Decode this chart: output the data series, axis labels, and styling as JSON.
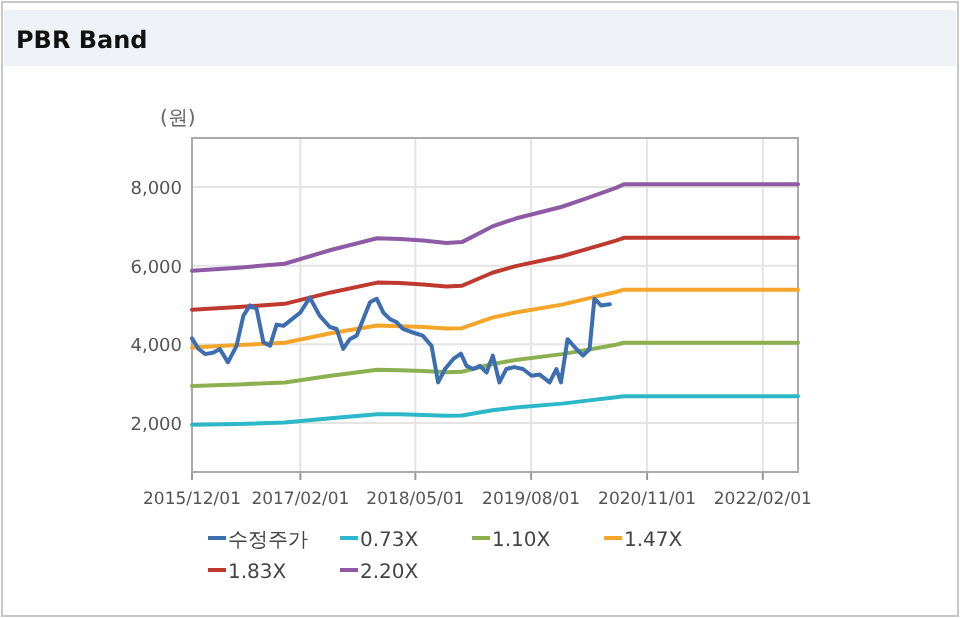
{
  "chart_data": {
    "type": "line",
    "title": "PBR Band",
    "ylabel": "(원)",
    "xlim": [
      "2015-12-01",
      "2022-06-20"
    ],
    "xticks": [
      {
        "value": "2015-12-01",
        "label": "2015/12/01"
      },
      {
        "value": "2017-02-01",
        "label": "2017/02/01"
      },
      {
        "value": "2018-05-01",
        "label": "2018/05/01"
      },
      {
        "value": "2019-08-01",
        "label": "2019/08/01"
      },
      {
        "value": "2020-11-01",
        "label": "2020/11/01"
      },
      {
        "value": "2022-02-01",
        "label": "2022/02/01"
      }
    ],
    "ylim": [
      750,
      9250
    ],
    "yticks": [
      {
        "value": 2000,
        "label": "2,000"
      },
      {
        "value": 4000,
        "label": "4,000"
      },
      {
        "value": 6000,
        "label": "6,000"
      },
      {
        "value": 8000,
        "label": "8,000"
      }
    ],
    "grid": true,
    "legend": "bottom",
    "line_style": "solid",
    "marker": "none",
    "series": [
      {
        "name": "수정주가",
        "color": "#3d6eb0",
        "x": [
          "2015-12-01",
          "2015-12-27",
          "2016-01-23",
          "2016-02-24",
          "2016-03-20",
          "2016-04-21",
          "2016-05-25",
          "2016-06-21",
          "2016-07-17",
          "2016-08-12",
          "2016-09-08",
          "2016-10-04",
          "2016-10-30",
          "2016-11-26",
          "2016-12-30",
          "2017-02-01",
          "2017-03-10",
          "2017-04-18",
          "2017-05-28",
          "2017-06-24",
          "2017-07-20",
          "2017-08-15",
          "2017-09-11",
          "2017-10-07",
          "2017-11-03",
          "2017-11-29",
          "2017-12-25",
          "2018-01-21",
          "2018-02-16",
          "2018-03-13",
          "2018-04-21",
          "2018-05-30",
          "2018-07-04",
          "2018-07-30",
          "2018-08-26",
          "2018-09-27",
          "2018-10-28",
          "2018-11-19",
          "2018-12-15",
          "2019-01-11",
          "2019-02-06",
          "2019-03-03",
          "2019-03-29",
          "2019-04-25",
          "2019-05-26",
          "2019-06-30",
          "2019-08-03",
          "2019-09-04",
          "2019-10-13",
          "2019-11-09",
          "2019-11-27",
          "2019-12-23",
          "2020-01-27",
          "2020-02-22",
          "2020-03-19",
          "2020-04-07",
          "2020-05-03",
          "2020-06-07"
        ],
        "values": [
          4150,
          3880,
          3750,
          3790,
          3880,
          3540,
          3960,
          4730,
          4990,
          4900,
          4050,
          3960,
          4500,
          4470,
          4640,
          4810,
          5190,
          4730,
          4440,
          4390,
          3880,
          4130,
          4220,
          4640,
          5070,
          5160,
          4810,
          4640,
          4560,
          4390,
          4300,
          4220,
          3960,
          3030,
          3370,
          3620,
          3760,
          3450,
          3370,
          3450,
          3280,
          3710,
          3030,
          3370,
          3420,
          3370,
          3200,
          3230,
          3030,
          3370,
          3030,
          4130,
          3880,
          3710,
          3880,
          5160,
          4990,
          5020
        ]
      },
      {
        "name": "0.73X",
        "color": "#2cb8c8",
        "x": [
          "2015-12-01",
          "2016-06-01",
          "2016-12-01",
          "2017-06-01",
          "2017-12-01",
          "2018-03-01",
          "2018-06-01",
          "2018-09-01",
          "2018-11-01",
          "2019-03-01",
          "2019-06-01",
          "2019-12-01",
          "2020-03-01",
          "2020-07-01",
          "2020-08-01",
          "2022-06-20"
        ],
        "values": [
          1950,
          1970,
          2010,
          2120,
          2220,
          2220,
          2200,
          2180,
          2190,
          2320,
          2390,
          2490,
          2560,
          2650,
          2680,
          2680
        ]
      },
      {
        "name": "1.10X",
        "color": "#8cb050",
        "x": [
          "2015-12-01",
          "2016-06-01",
          "2016-12-01",
          "2017-06-01",
          "2017-12-01",
          "2018-03-01",
          "2018-06-01",
          "2018-09-01",
          "2018-11-01",
          "2019-03-01",
          "2019-06-01",
          "2019-12-01",
          "2020-03-01",
          "2020-07-01",
          "2020-08-01",
          "2022-06-20"
        ],
        "values": [
          2940,
          2980,
          3030,
          3200,
          3350,
          3340,
          3320,
          3290,
          3300,
          3500,
          3600,
          3750,
          3850,
          3990,
          4040,
          4040
        ]
      },
      {
        "name": "1.47X",
        "color": "#f4a52a",
        "x": [
          "2015-12-01",
          "2016-06-01",
          "2016-12-01",
          "2017-06-01",
          "2017-12-01",
          "2018-03-01",
          "2018-06-01",
          "2018-09-01",
          "2018-11-01",
          "2019-03-01",
          "2019-06-01",
          "2019-12-01",
          "2020-03-01",
          "2020-07-01",
          "2020-08-01",
          "2022-06-20"
        ],
        "values": [
          3920,
          3980,
          4040,
          4280,
          4480,
          4460,
          4440,
          4400,
          4410,
          4680,
          4810,
          5010,
          5150,
          5330,
          5390,
          5390
        ]
      },
      {
        "name": "1.83X",
        "color": "#c0392f",
        "x": [
          "2015-12-01",
          "2016-06-01",
          "2016-12-01",
          "2017-06-01",
          "2017-12-01",
          "2018-03-01",
          "2018-06-01",
          "2018-09-01",
          "2018-11-01",
          "2019-03-01",
          "2019-06-01",
          "2019-12-01",
          "2020-03-01",
          "2020-07-01",
          "2020-08-01",
          "2022-06-20"
        ],
        "values": [
          4880,
          4950,
          5030,
          5320,
          5570,
          5560,
          5520,
          5470,
          5490,
          5820,
          5990,
          6240,
          6410,
          6640,
          6710,
          6710
        ]
      },
      {
        "name": "2.20X",
        "color": "#8e5aa5",
        "x": [
          "2015-12-01",
          "2016-06-01",
          "2016-12-01",
          "2017-06-01",
          "2017-12-01",
          "2018-03-01",
          "2018-06-01",
          "2018-09-01",
          "2018-11-01",
          "2019-03-01",
          "2019-06-01",
          "2019-12-01",
          "2020-03-01",
          "2020-07-01",
          "2020-08-01",
          "2022-06-20"
        ],
        "values": [
          5870,
          5950,
          6050,
          6400,
          6700,
          6680,
          6640,
          6580,
          6600,
          7000,
          7200,
          7500,
          7700,
          7980,
          8070,
          8070
        ]
      }
    ]
  }
}
